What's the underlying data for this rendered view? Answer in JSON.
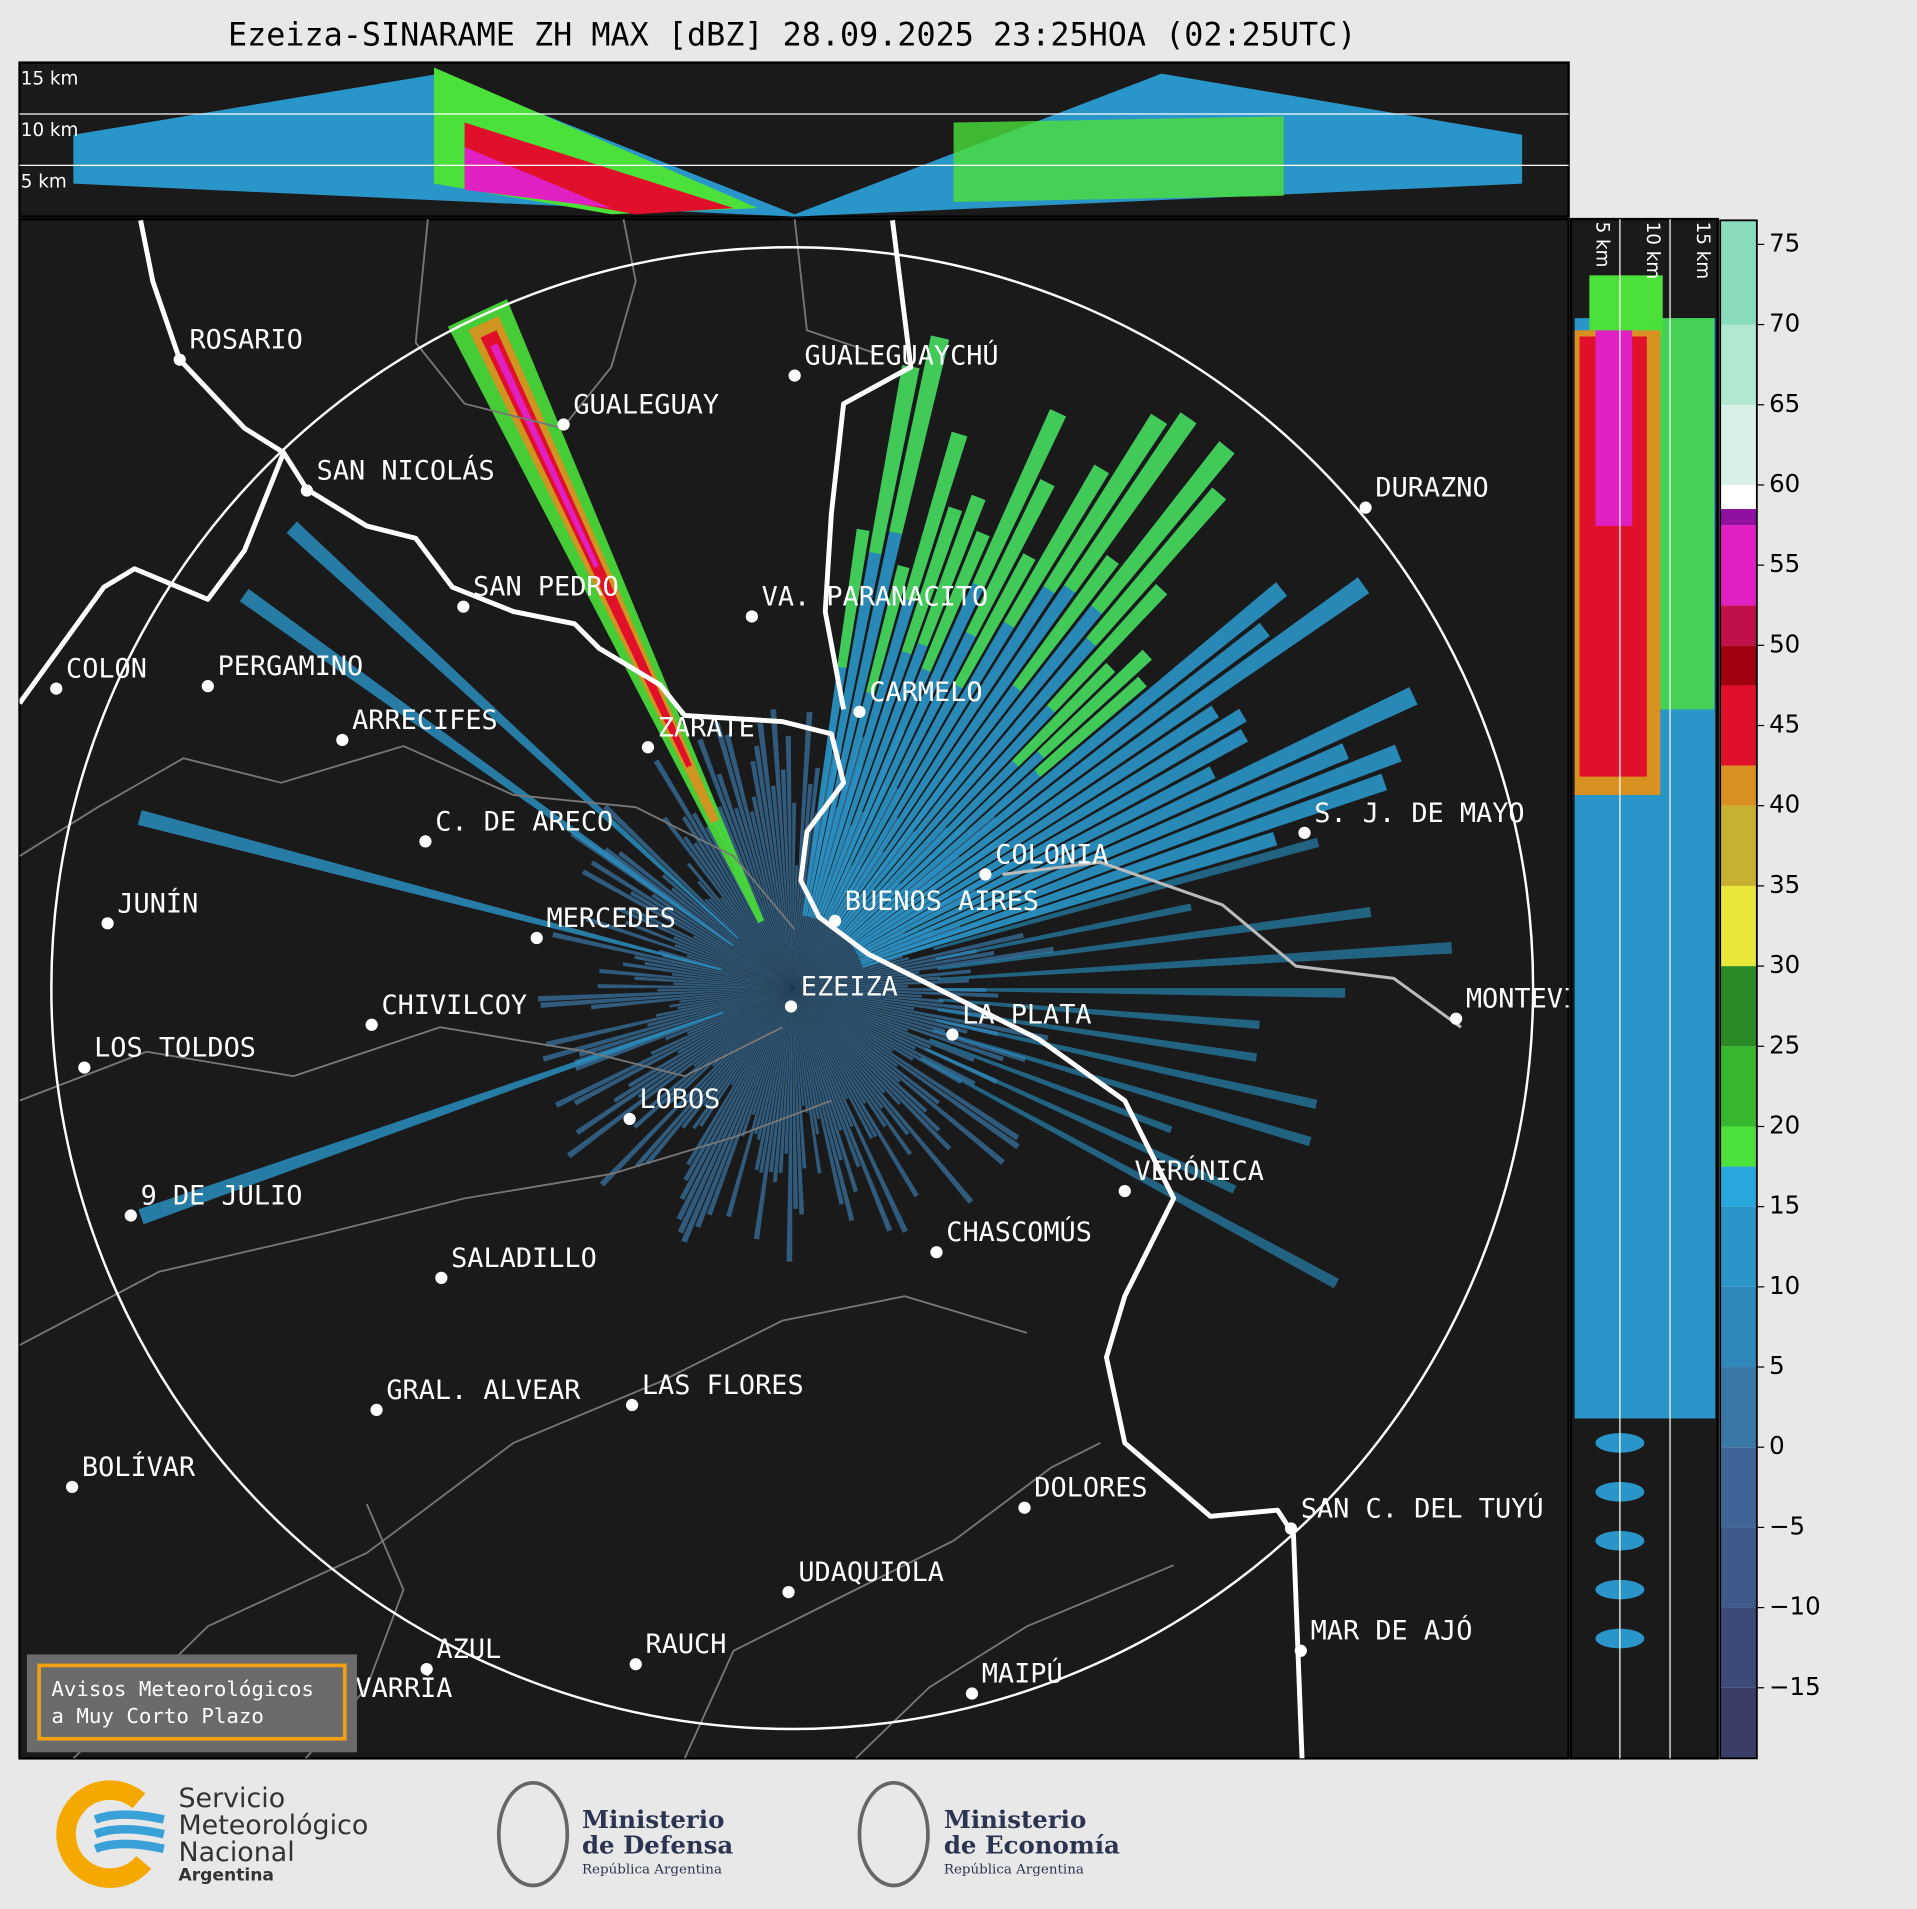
{
  "title": "Ezeiza-SINARAME ZH MAX [dBZ] 28.09.2025 23:25HOA (02:25UTC)",
  "top_panel": {
    "labels": [
      "15 km",
      "10 km",
      "5 km"
    ]
  },
  "side_panel": {
    "labels": [
      "5 km",
      "10 km",
      "15 km"
    ]
  },
  "colorbar": {
    "lim": [
      -19.4,
      76.5
    ],
    "ticks": [
      {
        "value": -15,
        "label": "−15"
      },
      {
        "value": -10,
        "label": "−10"
      },
      {
        "value": -5,
        "label": "−5"
      },
      0,
      5,
      10,
      15,
      20,
      25,
      30,
      35,
      40,
      45,
      50,
      55,
      60,
      65,
      70,
      75
    ],
    "bounds": [
      -20,
      -15,
      -10,
      -5,
      0,
      5,
      10,
      15,
      17.5,
      20,
      25,
      30,
      35,
      40,
      42.5,
      47.5,
      50,
      52.5,
      57.5,
      58.5,
      60,
      65,
      70,
      77
    ],
    "colors": [
      "#3a3d66",
      "#3d4a78",
      "#3e5a8a",
      "#3d6696",
      "#3a78a6",
      "#2f86b8",
      "#2a95c8",
      "#27a8dc",
      "#4be03a",
      "#36b82e",
      "#2a8a25",
      "#e8e83a",
      "#c8b030",
      "#d89020",
      "#e0102a",
      "#a00010",
      "#c0104a",
      "#e020c0",
      "#9010a0",
      "#ffffff",
      "#d8f0e8",
      "#b0e8d0",
      "#88dcbc"
    ]
  },
  "cities": [
    "ROSARIO",
    "GUALEGUAYCHÚ",
    "GUALEGUAY",
    "SAN NICOLÁS",
    "DURAZNO",
    "SAN PEDRO",
    "VA. PARANACITO",
    "COLON",
    "PERGAMINO",
    "CARMELO",
    "ARRECIFES",
    "ZÁRATE",
    "S. J. DE MAYO",
    "C. DE ARECO",
    "COLONIA",
    "BUENOS AIRES",
    "JUNÍN",
    "MERCEDES",
    "EZEIZA",
    "MONTEVIDEO",
    "CHIVILCOY",
    "LA PLATA",
    "LOS TOLDOS",
    "LOBOS",
    "VERÓNICA",
    "9 DE JULIO",
    "CHASCOMÚS",
    "SALADILLO",
    "GRAL. ALVEAR",
    "LAS FLORES",
    "BOLÍVAR",
    "DOLORES",
    "SAN C. DEL TUYÚ",
    "UDAQUIOLA",
    "MAR DE AJÓ",
    "RAUCH",
    "AZUL",
    "OLAVARRÍA",
    "MAIPÚ"
  ],
  "notice": [
    "Avisos Meteorológicos",
    "a Muy Corto Plazo"
  ],
  "logos": {
    "smn": [
      "Servicio",
      "Meteorológico",
      "Nacional",
      "Argentina"
    ],
    "defensa": [
      "Ministerio",
      "de Defensa",
      "República Argentina"
    ],
    "economia": [
      "Ministerio",
      "de Economía",
      "República Argentina"
    ]
  }
}
